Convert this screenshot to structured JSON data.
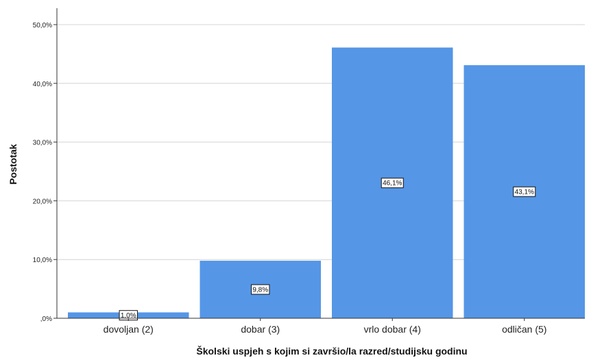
{
  "chart_data": {
    "type": "bar",
    "categories": [
      "dovoljan (2)",
      "dobar (3)",
      "vrlo dobar (4)",
      "odličan (5)"
    ],
    "values": [
      1.0,
      9.8,
      46.1,
      43.1
    ],
    "data_labels": [
      "1,0%",
      "9,8%",
      "46,1%",
      "43,1%"
    ],
    "xlabel": "Školski uspjeh s kojim si završio/la razred/studijsku godinu",
    "ylabel": "Postotak",
    "ylim": [
      0,
      50
    ],
    "yticks": [
      0,
      10,
      20,
      30,
      40,
      50
    ],
    "ytick_labels": [
      ",0%",
      "10,0%",
      "20,0%",
      "30,0%",
      "40,0%",
      "50,0%"
    ],
    "grid": "horizontal",
    "bar_color": "#5596e6"
  }
}
